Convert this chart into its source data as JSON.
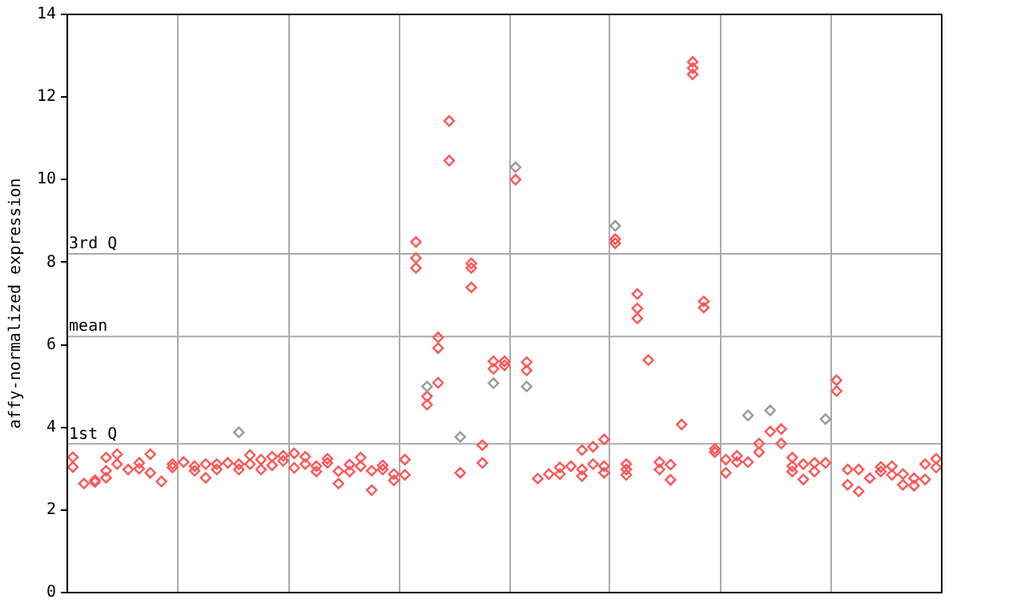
{
  "chart_data": {
    "type": "scatter",
    "ylabel": "affy-normalized expression",
    "ylim": [
      0,
      14
    ],
    "yticks": [
      0,
      2,
      4,
      6,
      8,
      10,
      12,
      14
    ],
    "categories": [
      null,
      null,
      null,
      null,
      null,
      null,
      null,
      null,
      null,
      null,
      null,
      null,
      null,
      null,
      null,
      null,
      null,
      null,
      null,
      null,
      null,
      null,
      null,
      null,
      null,
      null,
      null,
      null,
      null,
      null,
      null,
      null,
      null,
      null,
      null,
      null,
      null,
      null,
      null,
      null,
      null,
      null,
      null,
      null,
      null,
      null,
      null,
      null,
      null,
      null,
      null,
      null,
      null,
      null,
      null,
      null,
      null,
      null,
      null,
      null,
      null,
      null,
      null,
      null,
      null,
      null,
      null,
      null,
      null,
      null,
      null,
      null,
      null,
      null,
      null,
      null,
      null,
      null,
      null
    ],
    "tick_labels": "y",
    "grid": true,
    "legend": false,
    "marker": "diamond",
    "ref_lines": [
      {
        "axis": "y",
        "value": 3.6,
        "label": "1st Q",
        "color": "#aaaaaa"
      },
      {
        "axis": "y",
        "value": 6.2,
        "label": "mean",
        "color": "#aaaaaa"
      },
      {
        "axis": "y",
        "value": 8.2,
        "label": "3rd Q",
        "color": "#aaaaaa"
      }
    ],
    "series": [
      {
        "values": [
          3.28,
          2.64,
          2.72,
          3.27,
          3.35,
          2.98,
          3.14,
          3.35,
          2.69,
          3.11,
          3.16,
          3.06,
          3.11,
          3.11,
          3.14,
          3.88,
          3.33,
          3.22,
          3.29,
          3.31,
          3.37,
          3.29,
          3.06,
          3.24,
          2.94,
          3.1,
          3.27,
          2.95,
          3.08,
          2.87,
          3.22,
          8.49,
          4.99,
          6.18,
          11.42,
          3.77,
          7.97,
          3.57,
          5.6,
          5.6,
          10.3,
          5.58,
          2.76,
          2.87,
          3.03,
          3.06,
          3.45,
          3.53,
          3.71,
          8.88,
          3.11,
          7.23,
          5.63,
          3.16,
          3.1,
          4.07,
          12.85,
          7.05,
          3.48,
          3.22,
          3.31,
          4.29,
          3.61,
          4.41,
          3.96,
          3.27,
          3.11,
          3.14,
          4.2,
          5.14,
          2.98,
          2.98,
          2.77,
          3.04,
          3.06,
          2.87,
          2.77,
          3.11,
          3.24
        ],
        "colors": [
          "#ff5555",
          "#ff5555",
          "#ff5555",
          "#ff5555",
          "#ff5555",
          "#ff5555",
          "#ff5555",
          "#ff5555",
          "#ff5555",
          "#ff5555",
          "#ff5555",
          "#ff5555",
          "#ff5555",
          "#ff5555",
          "#ff5555",
          "#999999",
          "#ff5555",
          "#ff5555",
          "#ff5555",
          "#ff5555",
          "#ff5555",
          "#ff5555",
          "#ff5555",
          "#ff5555",
          "#ff5555",
          "#ff5555",
          "#ff5555",
          "#ff5555",
          "#ff5555",
          "#ff5555",
          "#ff5555",
          "#ff5555",
          "#999999",
          "#ff5555",
          "#ff5555",
          "#999999",
          "#ff5555",
          "#ff5555",
          "#ff5555",
          "#ff5555",
          "#999999",
          "#ff5555",
          "#ff5555",
          "#ff5555",
          "#ff5555",
          "#ff5555",
          "#ff5555",
          "#ff5555",
          "#ff5555",
          "#999999",
          "#ff5555",
          "#ff5555",
          "#ff5555",
          "#ff5555",
          "#ff5555",
          "#ff5555",
          "#ff5555",
          "#ff5555",
          "#ff5555",
          "#ff5555",
          "#ff5555",
          "#999999",
          "#ff5555",
          "#999999",
          "#ff5555",
          "#ff5555",
          "#ff5555",
          "#ff5555",
          "#999999",
          "#ff5555",
          "#ff5555",
          "#ff5555",
          "#ff5555",
          "#ff5555",
          "#ff5555",
          "#ff5555",
          "#ff5555",
          "#ff5555",
          "#ff5555"
        ]
      },
      {
        "color": "#ff5555",
        "values": [
          3.04,
          null,
          2.68,
          2.95,
          3.11,
          null,
          3.0,
          2.9,
          null,
          3.03,
          null,
          2.95,
          2.78,
          2.98,
          null,
          3.11,
          3.11,
          2.98,
          3.08,
          3.19,
          3.02,
          3.11,
          2.93,
          3.14,
          2.64,
          2.93,
          3.06,
          2.48,
          2.98,
          2.72,
          2.85,
          8.1,
          4.75,
          5.92,
          10.46,
          2.9,
          7.86,
          3.14,
          5.42,
          5.5,
          10.0,
          5.38,
          null,
          null,
          2.87,
          null,
          2.98,
          3.11,
          3.06,
          8.56,
          2.98,
          6.88,
          null,
          2.98,
          2.73,
          null,
          12.7,
          6.9,
          3.4,
          2.9,
          3.16,
          3.16,
          3.4,
          3.9,
          3.61,
          3.06,
          2.74,
          2.93,
          3.14,
          4.88,
          2.61,
          2.45,
          null,
          2.93,
          2.85,
          2.61,
          2.59,
          2.74,
          3.03
        ]
      },
      {
        "values": [
          null,
          null,
          null,
          2.78,
          null,
          null,
          null,
          null,
          null,
          null,
          null,
          null,
          null,
          null,
          null,
          2.98,
          null,
          null,
          null,
          null,
          null,
          null,
          null,
          null,
          null,
          null,
          null,
          null,
          null,
          null,
          null,
          7.86,
          4.55,
          5.08,
          null,
          null,
          7.39,
          null,
          5.07,
          null,
          null,
          4.99,
          null,
          null,
          null,
          null,
          2.82,
          null,
          2.9,
          8.46,
          2.85,
          6.64,
          null,
          null,
          null,
          null,
          12.55,
          null,
          null,
          null,
          null,
          null,
          null,
          null,
          null,
          2.93,
          null,
          null,
          null,
          null,
          null,
          null,
          null,
          null,
          null,
          null,
          null,
          null,
          null
        ],
        "colors": [
          null,
          null,
          null,
          "#ff5555",
          null,
          null,
          null,
          null,
          null,
          null,
          null,
          null,
          null,
          null,
          null,
          "#ff5555",
          null,
          null,
          null,
          null,
          null,
          null,
          null,
          null,
          null,
          null,
          null,
          null,
          null,
          null,
          null,
          "#ff5555",
          "#ff5555",
          "#ff5555",
          null,
          null,
          "#ff5555",
          null,
          "#999999",
          null,
          null,
          "#999999",
          null,
          null,
          null,
          null,
          "#ff5555",
          null,
          "#ff5555",
          "#ff5555",
          "#ff5555",
          "#ff5555",
          null,
          null,
          null,
          null,
          "#ff5555",
          null,
          null,
          null,
          null,
          null,
          null,
          null,
          null,
          "#ff5555",
          null,
          null,
          null,
          null,
          null,
          null,
          null,
          null,
          null,
          null,
          null,
          null,
          null
        ]
      }
    ]
  }
}
